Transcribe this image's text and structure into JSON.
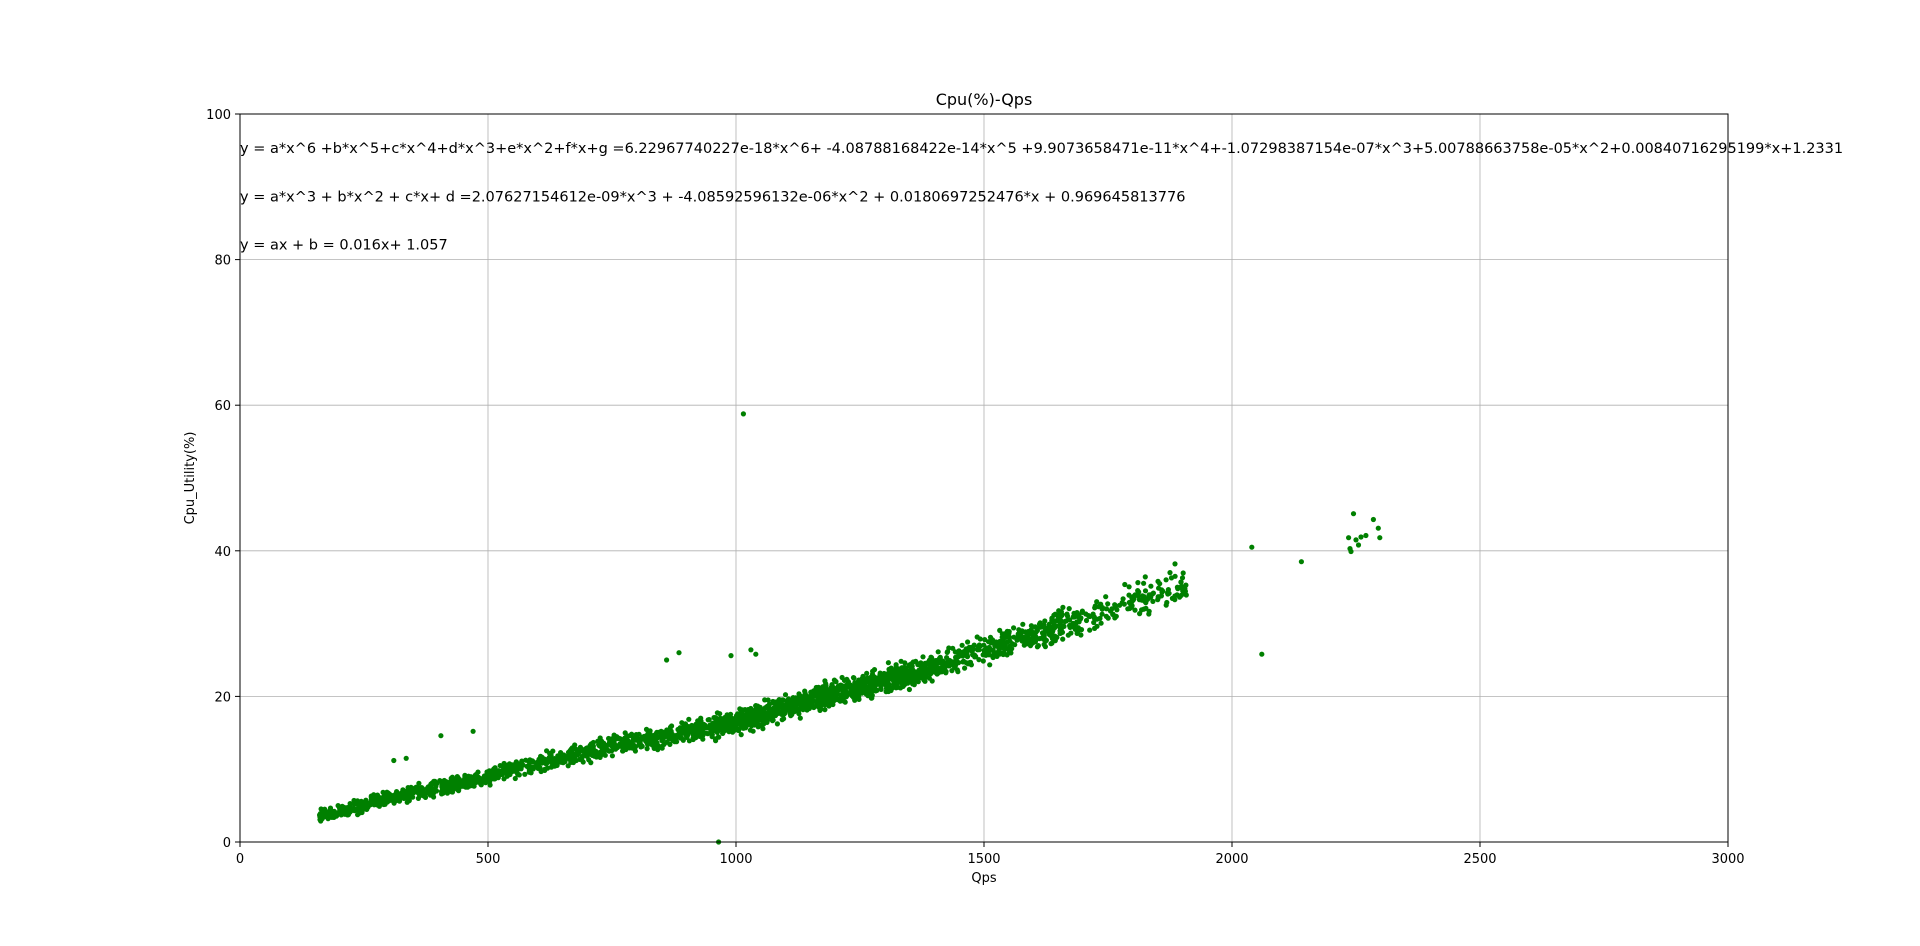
{
  "chart_data": {
    "type": "scatter",
    "title": "Cpu(%)-Qps",
    "xlabel": "Qps",
    "ylabel": "Cpu_Utility(%)",
    "xlim": [
      0,
      3000
    ],
    "ylim": [
      0,
      100
    ],
    "xticks": [
      0,
      500,
      1000,
      1500,
      2000,
      2500,
      3000
    ],
    "yticks": [
      0,
      20,
      40,
      60,
      80,
      100
    ],
    "grid": true,
    "point_color": "#008000",
    "annotations": [
      "y = a*x^6 +b*x^5+c*x^4+d*x^3+e*x^2+f*x+g =6.22967740227e-18*x^6+ -4.08788168422e-14*x^5 +9.9073658471e-11*x^4+-1.07298387154e-07*x^3+5.00788663758e-05*x^2+0.00840716295199*x+1.2331",
      "y = a*x^3 + b*x^2 + c*x+ d =2.07627154612e-09*x^3 + -4.08592596132e-06*x^2 + 0.0180697252476*x + 0.969645813776",
      "y = ax + b = 0.016x+ 1.057"
    ],
    "main_trend": [
      [
        160,
        3.5
      ],
      [
        300,
        6.0
      ],
      [
        500,
        9.0
      ],
      [
        700,
        12.5
      ],
      [
        900,
        15.0
      ],
      [
        1000,
        16.5
      ],
      [
        1100,
        18.5
      ],
      [
        1200,
        20.5
      ],
      [
        1300,
        22.0
      ],
      [
        1400,
        24.0
      ],
      [
        1500,
        26.5
      ],
      [
        1600,
        28.5
      ],
      [
        1700,
        30.5
      ],
      [
        1800,
        33.0
      ],
      [
        1900,
        35.0
      ]
    ],
    "points": [
      [
        1015,
        58.8
      ],
      [
        2040,
        40.5
      ],
      [
        2140,
        38.5
      ],
      [
        2060,
        25.8
      ],
      [
        2235,
        41.8
      ],
      [
        2238,
        40.3
      ],
      [
        2240,
        39.9
      ],
      [
        2245,
        45.1
      ],
      [
        2250,
        41.5
      ],
      [
        2255,
        40.8
      ],
      [
        2260,
        41.9
      ],
      [
        2270,
        42.1
      ],
      [
        2285,
        44.3
      ],
      [
        2295,
        43.1
      ],
      [
        2298,
        41.8
      ],
      [
        1885,
        38.2
      ],
      [
        1875,
        37.0
      ],
      [
        1890,
        35.0
      ],
      [
        1905,
        34.8
      ],
      [
        1030,
        26.4
      ],
      [
        1040,
        25.8
      ],
      [
        885,
        26.0
      ],
      [
        860,
        25.0
      ],
      [
        990,
        25.6
      ],
      [
        405,
        14.6
      ],
      [
        470,
        15.2
      ],
      [
        310,
        11.2
      ],
      [
        335,
        11.5
      ],
      [
        965,
        0.0
      ]
    ]
  }
}
